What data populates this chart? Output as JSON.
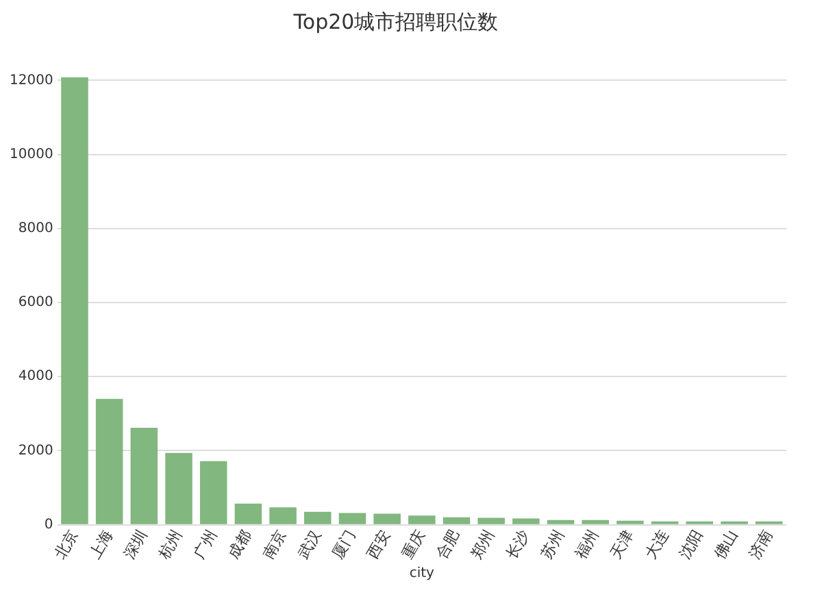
{
  "chart_data": {
    "type": "bar",
    "title": "Top20城市招聘职位数",
    "xlabel": "city",
    "categories": [
      "北京",
      "上海",
      "深圳",
      "杭州",
      "广州",
      "成都",
      "南京",
      "武汉",
      "厦门",
      "西安",
      "重庆",
      "合肥",
      "郑州",
      "长沙",
      "苏州",
      "福州",
      "天津",
      "大连",
      "沈阳",
      "佛山",
      "济南"
    ],
    "values": [
      12080,
      3400,
      2620,
      1940,
      1720,
      570,
      470,
      350,
      320,
      300,
      250,
      200,
      190,
      170,
      130,
      130,
      110,
      90,
      90,
      90,
      90
    ],
    "color": "#82b77f",
    "ylim": [
      0,
      12100
    ],
    "yticks": [
      0,
      2000,
      4000,
      6000,
      8000,
      10000,
      12000
    ],
    "grid": "y",
    "legend": false
  }
}
